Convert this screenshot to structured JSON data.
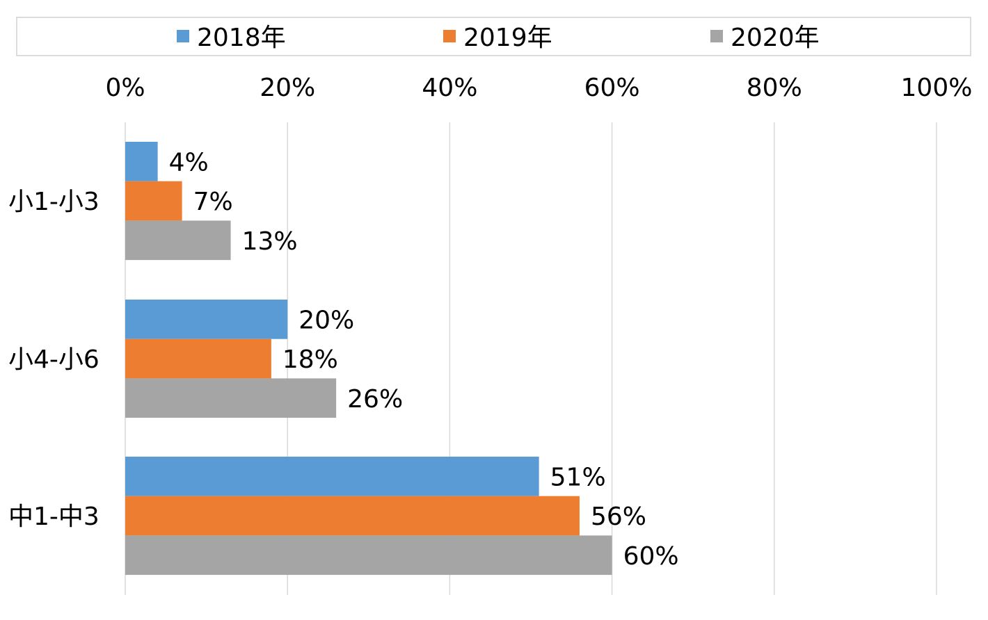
{
  "chart_data": {
    "type": "bar",
    "orientation": "horizontal",
    "categories": [
      "小1-小3",
      "小4-小6",
      "中1-中3"
    ],
    "series": [
      {
        "name": "2018年",
        "color": "#5b9bd5",
        "values": [
          4,
          20,
          51
        ],
        "labels": [
          "4%",
          "20%",
          "51%"
        ]
      },
      {
        "name": "2019年",
        "color": "#ed7d31",
        "values": [
          7,
          18,
          56
        ],
        "labels": [
          "7%",
          "18%",
          "56%"
        ]
      },
      {
        "name": "2020年",
        "color": "#a5a5a5",
        "values": [
          13,
          26,
          60
        ],
        "labels": [
          "13%",
          "26%",
          "60%"
        ]
      }
    ],
    "x_ticks": [
      "0%",
      "20%",
      "40%",
      "60%",
      "80%",
      "100%"
    ],
    "xlim": [
      0,
      100
    ],
    "x_axis_position": "top",
    "grid": true,
    "legend_position": "top",
    "title": "",
    "xlabel": "",
    "ylabel": ""
  }
}
